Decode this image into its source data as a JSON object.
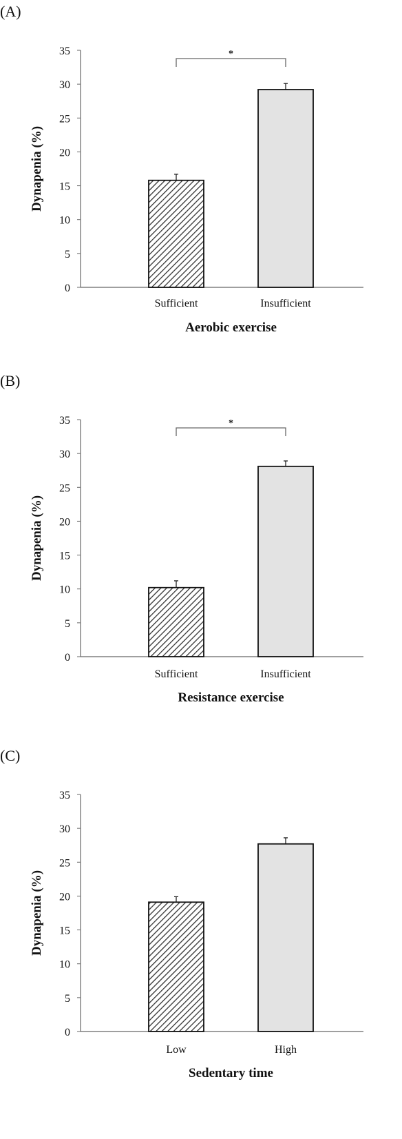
{
  "figure": {
    "panels": [
      {
        "label": "(A)",
        "ylabel": "Dynapenia (%)",
        "xlabel": "Aerobic exercise",
        "significance": "*"
      },
      {
        "label": "(B)",
        "ylabel": "Dynapenia (%)",
        "xlabel": "Resistance exercise",
        "significance": "*"
      },
      {
        "label": "(C)",
        "ylabel": "Dynapenia (%)",
        "xlabel": "Sedentary time",
        "significance": ""
      }
    ]
  },
  "colors": {
    "hatch_bar": "#333333",
    "light_bar": "#e3e3e3",
    "axis": "#666666",
    "bracket": "#666666"
  },
  "chart_data": [
    {
      "type": "bar",
      "categories": [
        "Sufficient",
        "Insufficient"
      ],
      "values": [
        15.8,
        29.2
      ],
      "error": [
        0.9,
        0.9
      ],
      "bar_fills": [
        "hatched",
        "light-gray"
      ],
      "title": "",
      "xlabel": "Aerobic exercise",
      "ylabel": "Dynapenia (%)",
      "ylim": [
        0,
        35
      ],
      "yticks": [
        0,
        5,
        10,
        15,
        20,
        25,
        30,
        35
      ],
      "grid": false,
      "significance_bracket": {
        "between": [
          "Sufficient",
          "Insufficient"
        ],
        "label": "*"
      }
    },
    {
      "type": "bar",
      "categories": [
        "Sufficient",
        "Insufficient"
      ],
      "values": [
        10.2,
        28.1
      ],
      "error": [
        1.0,
        0.8
      ],
      "bar_fills": [
        "hatched",
        "light-gray"
      ],
      "title": "",
      "xlabel": "Resistance exercise",
      "ylabel": "Dynapenia (%)",
      "ylim": [
        0,
        35
      ],
      "yticks": [
        0,
        5,
        10,
        15,
        20,
        25,
        30,
        35
      ],
      "grid": false,
      "significance_bracket": {
        "between": [
          "Sufficient",
          "Insufficient"
        ],
        "label": "*"
      }
    },
    {
      "type": "bar",
      "categories": [
        "Low",
        "High"
      ],
      "values": [
        19.1,
        27.7
      ],
      "error": [
        0.8,
        0.9
      ],
      "bar_fills": [
        "hatched",
        "light-gray"
      ],
      "title": "",
      "xlabel": "Sedentary time",
      "ylabel": "Dynapenia (%)",
      "ylim": [
        0,
        35
      ],
      "yticks": [
        0,
        5,
        10,
        15,
        20,
        25,
        30,
        35
      ],
      "grid": false,
      "significance_bracket": null
    }
  ]
}
